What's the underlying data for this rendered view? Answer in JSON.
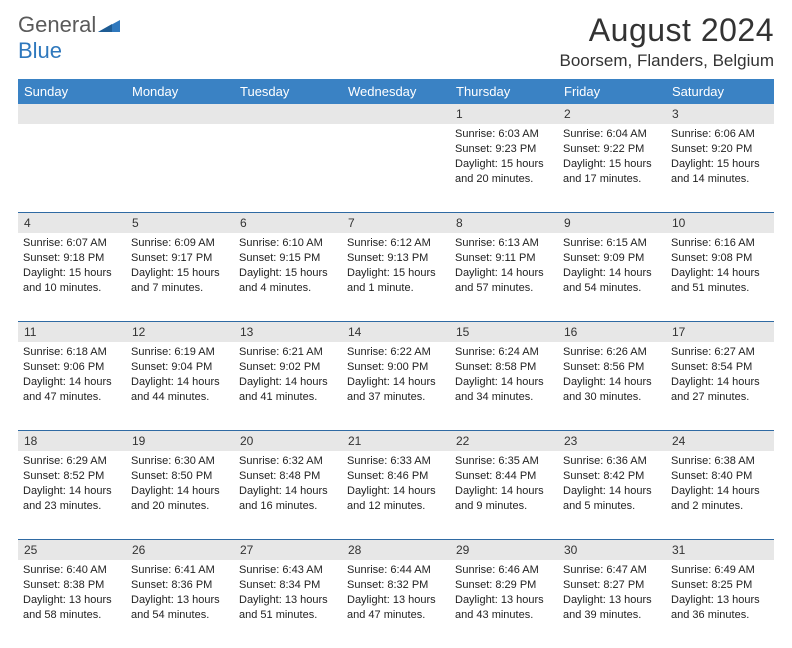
{
  "logo": {
    "text1": "General",
    "text2": "Blue"
  },
  "title": "August 2024",
  "location": "Boorsem, Flanders, Belgium",
  "colors": {
    "header_bg": "#3a82c4",
    "header_text": "#ffffff",
    "daynum_bg": "#e7e7e7",
    "rule": "#2f6aa3",
    "text": "#222222",
    "logo_gray": "#5a5a5a",
    "logo_blue": "#2f78bd"
  },
  "typography": {
    "title_fontsize": 32,
    "location_fontsize": 17,
    "dayheader_fontsize": 13,
    "cell_fontsize": 11
  },
  "day_headers": [
    "Sunday",
    "Monday",
    "Tuesday",
    "Wednesday",
    "Thursday",
    "Friday",
    "Saturday"
  ],
  "weeks": [
    {
      "nums": [
        "",
        "",
        "",
        "",
        "1",
        "2",
        "3"
      ],
      "cells": [
        null,
        null,
        null,
        null,
        {
          "sunrise": "Sunrise: 6:03 AM",
          "sunset": "Sunset: 9:23 PM",
          "daylight": "Daylight: 15 hours and 20 minutes."
        },
        {
          "sunrise": "Sunrise: 6:04 AM",
          "sunset": "Sunset: 9:22 PM",
          "daylight": "Daylight: 15 hours and 17 minutes."
        },
        {
          "sunrise": "Sunrise: 6:06 AM",
          "sunset": "Sunset: 9:20 PM",
          "daylight": "Daylight: 15 hours and 14 minutes."
        }
      ]
    },
    {
      "nums": [
        "4",
        "5",
        "6",
        "7",
        "8",
        "9",
        "10"
      ],
      "cells": [
        {
          "sunrise": "Sunrise: 6:07 AM",
          "sunset": "Sunset: 9:18 PM",
          "daylight": "Daylight: 15 hours and 10 minutes."
        },
        {
          "sunrise": "Sunrise: 6:09 AM",
          "sunset": "Sunset: 9:17 PM",
          "daylight": "Daylight: 15 hours and 7 minutes."
        },
        {
          "sunrise": "Sunrise: 6:10 AM",
          "sunset": "Sunset: 9:15 PM",
          "daylight": "Daylight: 15 hours and 4 minutes."
        },
        {
          "sunrise": "Sunrise: 6:12 AM",
          "sunset": "Sunset: 9:13 PM",
          "daylight": "Daylight: 15 hours and 1 minute."
        },
        {
          "sunrise": "Sunrise: 6:13 AM",
          "sunset": "Sunset: 9:11 PM",
          "daylight": "Daylight: 14 hours and 57 minutes."
        },
        {
          "sunrise": "Sunrise: 6:15 AM",
          "sunset": "Sunset: 9:09 PM",
          "daylight": "Daylight: 14 hours and 54 minutes."
        },
        {
          "sunrise": "Sunrise: 6:16 AM",
          "sunset": "Sunset: 9:08 PM",
          "daylight": "Daylight: 14 hours and 51 minutes."
        }
      ]
    },
    {
      "nums": [
        "11",
        "12",
        "13",
        "14",
        "15",
        "16",
        "17"
      ],
      "cells": [
        {
          "sunrise": "Sunrise: 6:18 AM",
          "sunset": "Sunset: 9:06 PM",
          "daylight": "Daylight: 14 hours and 47 minutes."
        },
        {
          "sunrise": "Sunrise: 6:19 AM",
          "sunset": "Sunset: 9:04 PM",
          "daylight": "Daylight: 14 hours and 44 minutes."
        },
        {
          "sunrise": "Sunrise: 6:21 AM",
          "sunset": "Sunset: 9:02 PM",
          "daylight": "Daylight: 14 hours and 41 minutes."
        },
        {
          "sunrise": "Sunrise: 6:22 AM",
          "sunset": "Sunset: 9:00 PM",
          "daylight": "Daylight: 14 hours and 37 minutes."
        },
        {
          "sunrise": "Sunrise: 6:24 AM",
          "sunset": "Sunset: 8:58 PM",
          "daylight": "Daylight: 14 hours and 34 minutes."
        },
        {
          "sunrise": "Sunrise: 6:26 AM",
          "sunset": "Sunset: 8:56 PM",
          "daylight": "Daylight: 14 hours and 30 minutes."
        },
        {
          "sunrise": "Sunrise: 6:27 AM",
          "sunset": "Sunset: 8:54 PM",
          "daylight": "Daylight: 14 hours and 27 minutes."
        }
      ]
    },
    {
      "nums": [
        "18",
        "19",
        "20",
        "21",
        "22",
        "23",
        "24"
      ],
      "cells": [
        {
          "sunrise": "Sunrise: 6:29 AM",
          "sunset": "Sunset: 8:52 PM",
          "daylight": "Daylight: 14 hours and 23 minutes."
        },
        {
          "sunrise": "Sunrise: 6:30 AM",
          "sunset": "Sunset: 8:50 PM",
          "daylight": "Daylight: 14 hours and 20 minutes."
        },
        {
          "sunrise": "Sunrise: 6:32 AM",
          "sunset": "Sunset: 8:48 PM",
          "daylight": "Daylight: 14 hours and 16 minutes."
        },
        {
          "sunrise": "Sunrise: 6:33 AM",
          "sunset": "Sunset: 8:46 PM",
          "daylight": "Daylight: 14 hours and 12 minutes."
        },
        {
          "sunrise": "Sunrise: 6:35 AM",
          "sunset": "Sunset: 8:44 PM",
          "daylight": "Daylight: 14 hours and 9 minutes."
        },
        {
          "sunrise": "Sunrise: 6:36 AM",
          "sunset": "Sunset: 8:42 PM",
          "daylight": "Daylight: 14 hours and 5 minutes."
        },
        {
          "sunrise": "Sunrise: 6:38 AM",
          "sunset": "Sunset: 8:40 PM",
          "daylight": "Daylight: 14 hours and 2 minutes."
        }
      ]
    },
    {
      "nums": [
        "25",
        "26",
        "27",
        "28",
        "29",
        "30",
        "31"
      ],
      "cells": [
        {
          "sunrise": "Sunrise: 6:40 AM",
          "sunset": "Sunset: 8:38 PM",
          "daylight": "Daylight: 13 hours and 58 minutes."
        },
        {
          "sunrise": "Sunrise: 6:41 AM",
          "sunset": "Sunset: 8:36 PM",
          "daylight": "Daylight: 13 hours and 54 minutes."
        },
        {
          "sunrise": "Sunrise: 6:43 AM",
          "sunset": "Sunset: 8:34 PM",
          "daylight": "Daylight: 13 hours and 51 minutes."
        },
        {
          "sunrise": "Sunrise: 6:44 AM",
          "sunset": "Sunset: 8:32 PM",
          "daylight": "Daylight: 13 hours and 47 minutes."
        },
        {
          "sunrise": "Sunrise: 6:46 AM",
          "sunset": "Sunset: 8:29 PM",
          "daylight": "Daylight: 13 hours and 43 minutes."
        },
        {
          "sunrise": "Sunrise: 6:47 AM",
          "sunset": "Sunset: 8:27 PM",
          "daylight": "Daylight: 13 hours and 39 minutes."
        },
        {
          "sunrise": "Sunrise: 6:49 AM",
          "sunset": "Sunset: 8:25 PM",
          "daylight": "Daylight: 13 hours and 36 minutes."
        }
      ]
    }
  ]
}
